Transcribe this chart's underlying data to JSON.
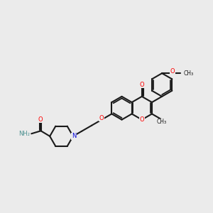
{
  "bg": "#ebebeb",
  "col_O": "#ff0000",
  "col_N_blue": "#0000dd",
  "col_N_teal": "#4a9090",
  "col_bond": "#1a1a1a",
  "lw": 1.5,
  "lw_inner": 1.3,
  "fs": 6.0,
  "figsize": [
    3.0,
    3.0
  ],
  "dpi": 100,
  "xlim": [
    0.0,
    10.0
  ],
  "ylim": [
    1.5,
    5.5
  ]
}
